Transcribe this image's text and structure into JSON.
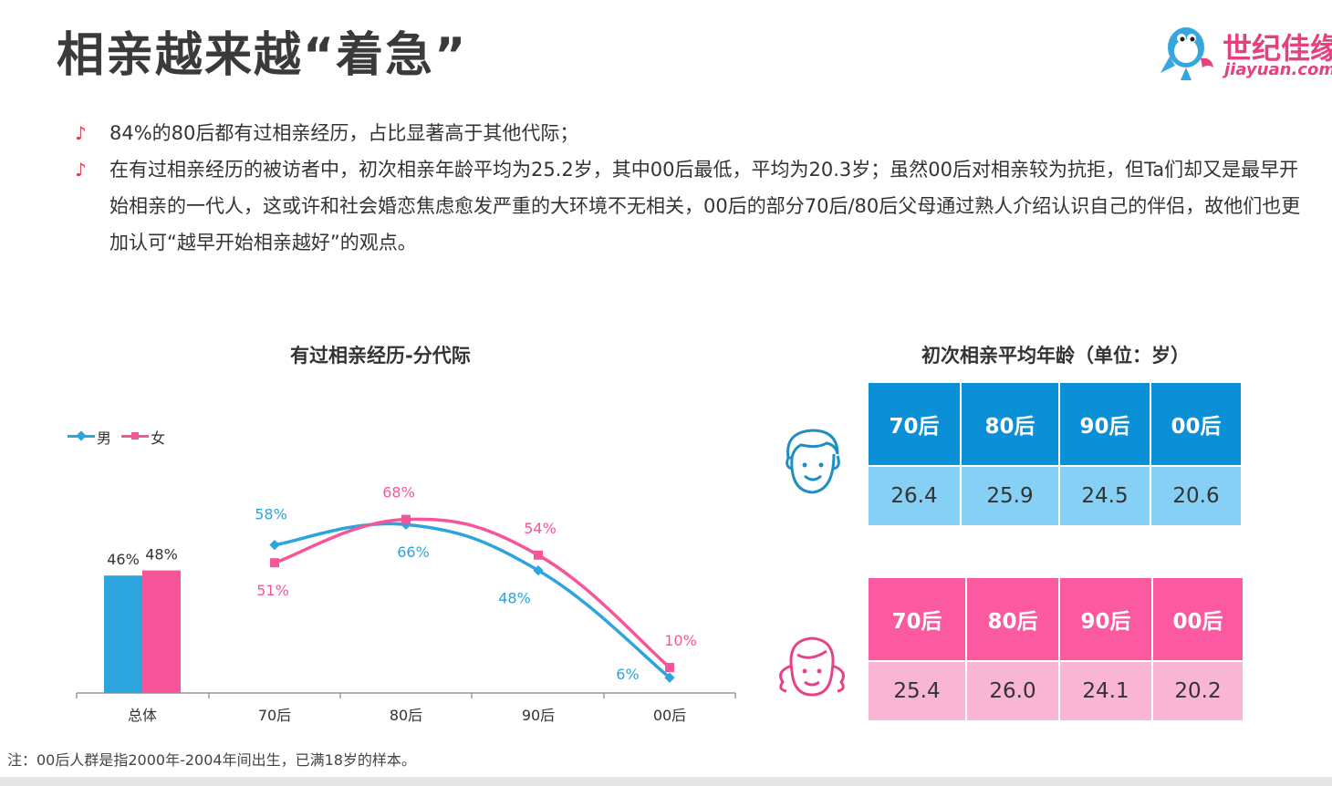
{
  "title": "相亲越来越“着急”",
  "logo": {
    "cn": "世纪佳缘",
    "en": "jiayuan.com"
  },
  "bullets": [
    {
      "icon": "music-note-icon",
      "text": "84%的80后都有过相亲经历，占比显著高于其他代际；"
    },
    {
      "icon": "music-note-icon",
      "text": "在有过相亲经历的被访者中，初次相亲年龄平均为25.2岁，其中00后最低，平均为20.3岁；虽然00后对相亲较为抗拒，但Ta们却又是最早开始相亲的一代人，这或许和社会婚恋焦虑愈发严重的大环境不无相关，00后的部分70后/80后父母通过熟人介绍认识自己的伴侣，故他们也更加认可“越早开始相亲越好”的观点。"
    }
  ],
  "note": "注：00后人群是指2000年-2004年间出生，已满18岁的样本。",
  "colors": {
    "male": "#2ca4dd",
    "female": "#f7559a",
    "maleHead": "#0b8fd7",
    "maleCell": "#86d0f6",
    "femaleHead": "#fb5aa0",
    "femaleCell": "#f9b5d4"
  },
  "chart_data": [
    {
      "type": "bar",
      "title": "有过相亲经历-分代际",
      "categories": [
        "总体"
      ],
      "series": [
        {
          "name": "男",
          "values": [
            46
          ],
          "labels": [
            "46%"
          ]
        },
        {
          "name": "女",
          "values": [
            48
          ],
          "labels": [
            "48%"
          ]
        }
      ],
      "ylim": [
        0,
        100
      ],
      "legend": "top-left"
    },
    {
      "type": "line",
      "categories": [
        "70后",
        "80后",
        "90后",
        "00后"
      ],
      "series": [
        {
          "name": "男",
          "values": [
            58,
            66,
            48,
            6
          ],
          "labels": [
            "58%",
            "66%",
            "48%",
            "6%"
          ]
        },
        {
          "name": "女",
          "values": [
            51,
            68,
            54,
            10
          ],
          "labels": [
            "51%",
            "68%",
            "54%",
            "10%"
          ]
        }
      ],
      "ylim": [
        0,
        100
      ]
    },
    {
      "type": "table",
      "title": "初次相亲平均年龄（单位：岁）",
      "columns": [
        "70后",
        "80后",
        "90后",
        "00后"
      ],
      "rows": [
        {
          "group": "male",
          "icon": "male-face-icon",
          "values": [
            "26.4",
            "25.9",
            "24.5",
            "20.6"
          ]
        },
        {
          "group": "female",
          "icon": "female-face-icon",
          "values": [
            "25.4",
            "26.0",
            "24.1",
            "20.2"
          ]
        }
      ]
    }
  ]
}
